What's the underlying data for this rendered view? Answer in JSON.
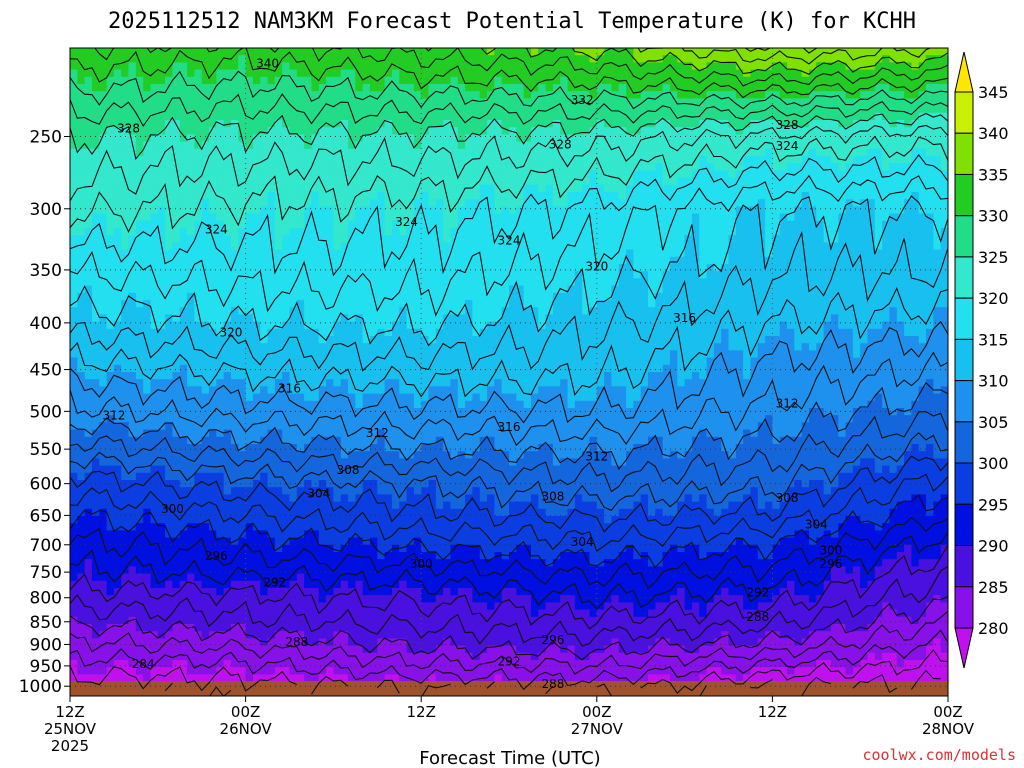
{
  "chart_data": {
    "type": "time-height contour (filled)",
    "title": "2025112512 NAM3KM Forecast Potential Temperature (K) for KCHH",
    "xlabel": "Forecast Time (UTC)",
    "ylabel": "",
    "x_ticks": [
      {
        "hour": 0,
        "line1": "12Z",
        "line2": "25NOV",
        "line3": "2025"
      },
      {
        "hour": 12,
        "line1": "00Z",
        "line2": "26NOV",
        "line3": ""
      },
      {
        "hour": 24,
        "line1": "12Z",
        "line2": "",
        "line3": ""
      },
      {
        "hour": 36,
        "line1": "00Z",
        "line2": "27NOV",
        "line3": ""
      },
      {
        "hour": 48,
        "line1": "12Z",
        "line2": "",
        "line3": ""
      },
      {
        "hour": 60,
        "line1": "00Z",
        "line2": "28NOV",
        "line3": ""
      }
    ],
    "xlim_hours": [
      0,
      60
    ],
    "y_ticks": [
      250,
      300,
      350,
      400,
      450,
      500,
      550,
      600,
      650,
      700,
      750,
      800,
      850,
      900,
      950,
      1000
    ],
    "ylim_hpa": [
      1025,
      200
    ],
    "y_scale": "log-pressure",
    "grid": "dotted",
    "levels": [
      280,
      285,
      290,
      295,
      300,
      305,
      310,
      315,
      320,
      325,
      330,
      335,
      340,
      345
    ],
    "colorbar_labels": [
      345,
      340,
      335,
      330,
      325,
      320,
      315,
      310,
      305,
      300,
      295,
      290,
      285,
      280
    ],
    "colorbar_colors": [
      "#ffe600",
      "#c8f000",
      "#80e000",
      "#22cc22",
      "#22dd88",
      "#33e8cc",
      "#22e0f0",
      "#18c0f0",
      "#1e90ee",
      "#1466dd",
      "#0a3ee0",
      "#0010e0",
      "#4a10e0",
      "#8810e8",
      "#c010f0"
    ],
    "profile_pressure_hpa": [
      1000,
      950,
      900,
      850,
      800,
      750,
      700,
      650,
      600,
      550,
      500,
      450,
      400,
      350,
      300,
      250,
      200
    ],
    "profile_hours": [
      0,
      12,
      24,
      36,
      48,
      60
    ],
    "theta_k": [
      [
        283.0,
        283.0,
        284.5,
        285.0,
        282.0,
        281.5
      ],
      [
        285.0,
        285.5,
        287.5,
        288.0,
        285.5,
        283.5
      ],
      [
        287.5,
        288.5,
        290.5,
        291.0,
        289.5,
        285.5
      ],
      [
        290.5,
        291.5,
        292.5,
        293.5,
        292.5,
        288.0
      ],
      [
        293.0,
        293.5,
        294.5,
        296.0,
        295.0,
        290.5
      ],
      [
        295.5,
        296.5,
        297.0,
        298.5,
        297.5,
        292.5
      ],
      [
        297.5,
        299.0,
        300.5,
        301.5,
        300.0,
        295.0
      ],
      [
        300.0,
        302.0,
        303.5,
        304.5,
        303.5,
        298.0
      ],
      [
        303.0,
        305.0,
        306.0,
        307.5,
        306.5,
        301.0
      ],
      [
        307.0,
        309.0,
        310.0,
        310.5,
        309.0,
        305.0
      ],
      [
        311.5,
        313.0,
        313.5,
        314.0,
        311.5,
        308.5
      ],
      [
        315.0,
        316.5,
        317.0,
        316.5,
        313.5,
        312.0
      ],
      [
        319.0,
        320.0,
        320.5,
        318.5,
        316.0,
        315.0
      ],
      [
        322.0,
        323.0,
        323.0,
        321.0,
        318.5,
        318.0
      ],
      [
        326.5,
        325.5,
        325.0,
        323.5,
        320.0,
        320.0
      ],
      [
        330.0,
        329.5,
        329.5,
        329.0,
        327.5,
        327.0
      ],
      [
        338.0,
        337.0,
        339.0,
        340.5,
        344.0,
        342.0
      ]
    ],
    "contour_labels": [
      {
        "value": "340",
        "hour": 13.5,
        "p": 208
      },
      {
        "value": "332",
        "hour": 35.0,
        "p": 228
      },
      {
        "value": "328",
        "hour": 4.0,
        "p": 245
      },
      {
        "value": "328",
        "hour": 33.5,
        "p": 255
      },
      {
        "value": "328",
        "hour": 49.0,
        "p": 243
      },
      {
        "value": "324",
        "hour": 49.0,
        "p": 256
      },
      {
        "value": "324",
        "hour": 10.0,
        "p": 316
      },
      {
        "value": "324",
        "hour": 23.0,
        "p": 310
      },
      {
        "value": "324",
        "hour": 30.0,
        "p": 325
      },
      {
        "value": "320",
        "hour": 36.0,
        "p": 347
      },
      {
        "value": "316",
        "hour": 42.0,
        "p": 395
      },
      {
        "value": "320",
        "hour": 11.0,
        "p": 410
      },
      {
        "value": "316",
        "hour": 15.0,
        "p": 472
      },
      {
        "value": "312",
        "hour": 3.0,
        "p": 505
      },
      {
        "value": "312",
        "hour": 21.0,
        "p": 528
      },
      {
        "value": "316",
        "hour": 30.0,
        "p": 520
      },
      {
        "value": "312",
        "hour": 49.0,
        "p": 490
      },
      {
        "value": "312",
        "hour": 36.0,
        "p": 560
      },
      {
        "value": "308",
        "hour": 19.0,
        "p": 580
      },
      {
        "value": "304",
        "hour": 17.0,
        "p": 615
      },
      {
        "value": "300",
        "hour": 7.0,
        "p": 640
      },
      {
        "value": "308",
        "hour": 33.0,
        "p": 620
      },
      {
        "value": "308",
        "hour": 49.0,
        "p": 622
      },
      {
        "value": "304",
        "hour": 51.0,
        "p": 665
      },
      {
        "value": "304",
        "hour": 35.0,
        "p": 695
      },
      {
        "value": "300",
        "hour": 52.0,
        "p": 710
      },
      {
        "value": "296",
        "hour": 10.0,
        "p": 720
      },
      {
        "value": "300",
        "hour": 24.0,
        "p": 735
      },
      {
        "value": "296",
        "hour": 52.0,
        "p": 735
      },
      {
        "value": "292",
        "hour": 14.0,
        "p": 770
      },
      {
        "value": "292",
        "hour": 47.0,
        "p": 790
      },
      {
        "value": "288",
        "hour": 47.0,
        "p": 840
      },
      {
        "value": "288",
        "hour": 15.5,
        "p": 895
      },
      {
        "value": "296",
        "hour": 33.0,
        "p": 890
      },
      {
        "value": "284",
        "hour": 5.0,
        "p": 945
      },
      {
        "value": "292",
        "hour": 30.0,
        "p": 940
      },
      {
        "value": "288",
        "hour": 33.0,
        "p": 995
      }
    ],
    "credit": "coolwx.com/models",
    "credit_color": "#e03030",
    "ground_color": "#a0522d"
  }
}
